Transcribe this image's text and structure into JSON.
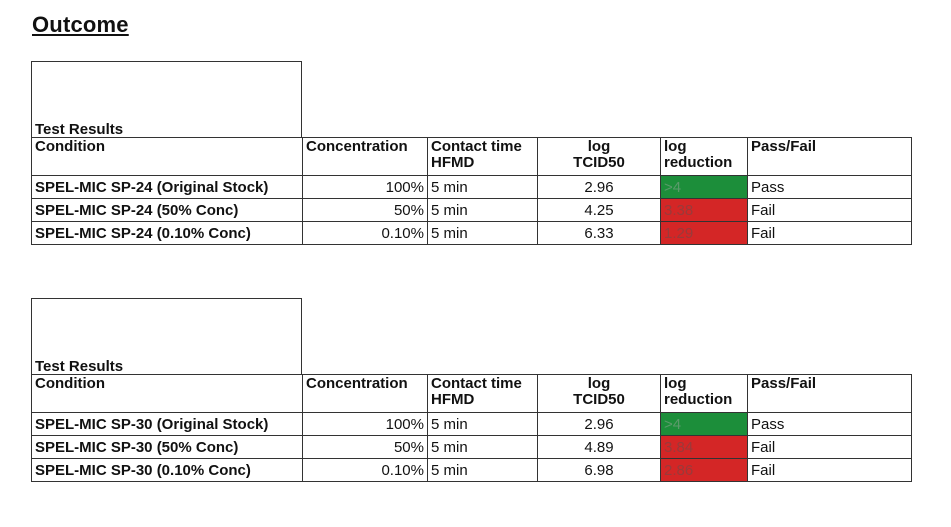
{
  "heading": "Outcome",
  "tables": [
    {
      "section_label": "Test Results",
      "headers": {
        "condition": "Condition",
        "concentration": "Concentration",
        "contact_line1": "Contact time",
        "contact_line2": "HFMD",
        "log_line1": "log",
        "log_line2": "TCID50",
        "reduction_line1": "log",
        "reduction_line2": "reduction",
        "passfail": "Pass/Fail"
      },
      "rows": [
        {
          "condition": "SPEL-MIC SP-24 (Original Stock)",
          "concentration": "100%",
          "contact": "5 min",
          "log": "2.96",
          "reduction": ">4",
          "result": "Pass",
          "status_color": "#1c8e3a"
        },
        {
          "condition": "SPEL-MIC SP-24 (50% Conc)",
          "concentration": "50%",
          "contact": "5 min",
          "log": "4.25",
          "reduction": "3.38",
          "result": "Fail",
          "status_color": "#d42626"
        },
        {
          "condition": "SPEL-MIC SP-24 (0.10% Conc)",
          "concentration": "0.10%",
          "contact": "5 min",
          "log": "6.33",
          "reduction": "1.29",
          "result": "Fail",
          "status_color": "#d42626"
        }
      ]
    },
    {
      "section_label": "Test Results",
      "headers": {
        "condition": "Condition",
        "concentration": "Concentration",
        "contact_line1": "Contact time",
        "contact_line2": "HFMD",
        "log_line1": "log",
        "log_line2": "TCID50",
        "reduction_line1": "log",
        "reduction_line2": "reduction",
        "passfail": "Pass/Fail"
      },
      "rows": [
        {
          "condition": "SPEL-MIC SP-30 (Original Stock)",
          "concentration": "100%",
          "contact": "5 min",
          "log": "2.96",
          "reduction": ">4",
          "result": "Pass",
          "status_color": "#1c8e3a"
        },
        {
          "condition": "SPEL-MIC SP-30 (50% Conc)",
          "concentration": "50%",
          "contact": "5 min",
          "log": "4.89",
          "reduction": "3.84",
          "result": "Fail",
          "status_color": "#d42626"
        },
        {
          "condition": "SPEL-MIC SP-30 (0.10% Conc)",
          "concentration": "0.10%",
          "contact": "5 min",
          "log": "6.98",
          "reduction": "2.86",
          "result": "Fail",
          "status_color": "#d42626"
        }
      ]
    }
  ]
}
